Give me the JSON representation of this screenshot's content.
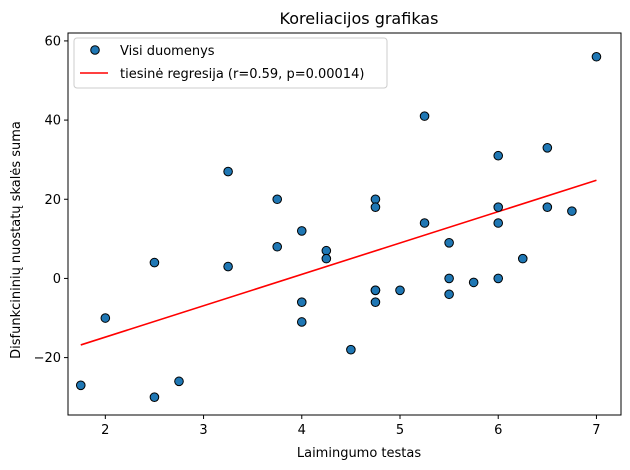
{
  "chart_data": {
    "type": "scatter",
    "title": "Koreliacijos grafikas",
    "xlabel": "Laimingumo testas",
    "ylabel": "Disfunkcininių nuostatų skalės suma",
    "xlim": [
      1.62,
      7.25
    ],
    "ylim": [
      -34.5,
      62
    ],
    "xticks": [
      2,
      3,
      4,
      5,
      6,
      7
    ],
    "yticks": [
      -20,
      0,
      20,
      40,
      60
    ],
    "grid": false,
    "legend_position": "top-left",
    "series": [
      {
        "name": "Visi duomenys",
        "kind": "scatter",
        "color": "#1f77b4",
        "edge_color": "#000000",
        "points": [
          [
            1.75,
            -27
          ],
          [
            2,
            -10
          ],
          [
            2.5,
            4
          ],
          [
            2.5,
            -30
          ],
          [
            2.75,
            -26
          ],
          [
            3.25,
            27
          ],
          [
            3.25,
            3
          ],
          [
            3.75,
            20
          ],
          [
            3.75,
            8
          ],
          [
            4,
            12
          ],
          [
            4,
            -6
          ],
          [
            4,
            -11
          ],
          [
            4.25,
            7
          ],
          [
            4.25,
            5
          ],
          [
            4.5,
            -18
          ],
          [
            4.75,
            20
          ],
          [
            4.75,
            18
          ],
          [
            4.75,
            -3
          ],
          [
            4.75,
            -3
          ],
          [
            4.75,
            -6
          ],
          [
            5,
            -3
          ],
          [
            5.25,
            41
          ],
          [
            5.25,
            14
          ],
          [
            5.5,
            9
          ],
          [
            5.5,
            0
          ],
          [
            5.5,
            -4
          ],
          [
            5.75,
            -1
          ],
          [
            6,
            31
          ],
          [
            6,
            18
          ],
          [
            6,
            14
          ],
          [
            6,
            0
          ],
          [
            6.25,
            5
          ],
          [
            6.5,
            33
          ],
          [
            6.5,
            18
          ],
          [
            6.75,
            17
          ],
          [
            7,
            56
          ]
        ]
      },
      {
        "name": "tiesinė regresija (r=0.59, p=0.00014)",
        "kind": "line",
        "color": "#ff0000",
        "points": [
          [
            1.75,
            -16.8
          ],
          [
            7,
            24.8
          ]
        ]
      }
    ]
  }
}
